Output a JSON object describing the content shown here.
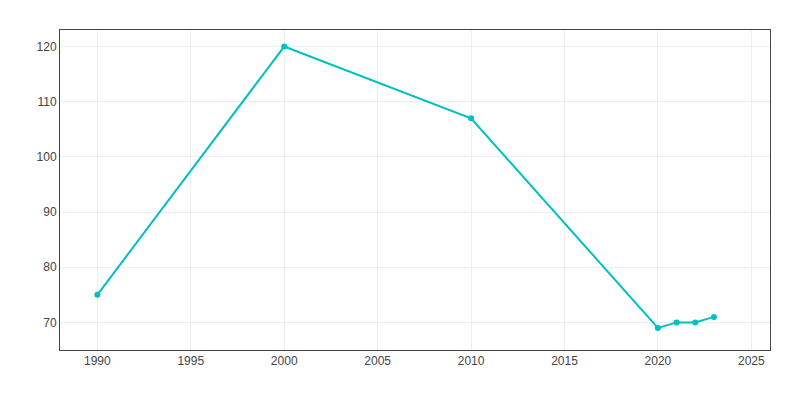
{
  "chart_data": {
    "type": "line",
    "x": [
      1990,
      2000,
      2010,
      2020,
      2021,
      2022,
      2023
    ],
    "values": [
      75,
      120,
      107,
      69,
      70,
      70,
      71
    ],
    "color": "#00C0C0",
    "marker": "circle",
    "xlim": [
      1988,
      2026
    ],
    "ylim": [
      65,
      123
    ],
    "xticks": [
      1990,
      1995,
      2000,
      2005,
      2010,
      2015,
      2020,
      2025
    ],
    "yticks": [
      70,
      80,
      90,
      100,
      110,
      120
    ],
    "grid": true
  }
}
